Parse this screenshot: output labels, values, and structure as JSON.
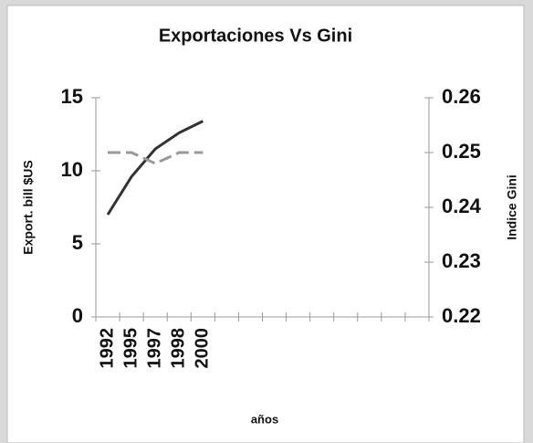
{
  "chart_data": {
    "type": "line",
    "title": "Exportaciones Vs Gini",
    "x_label": "años",
    "y_label": "Export. bill $US",
    "y2_label": "Indice Gini",
    "categories": [
      "1992",
      "1995",
      "1997",
      "1998",
      "2000",
      null,
      null,
      null,
      null,
      null,
      null,
      null,
      null,
      null
    ],
    "series": [
      {
        "name": "Export. bill $US",
        "color": "#333333",
        "values": [
          7.0,
          9.6,
          11.5,
          12.6,
          13.4,
          null,
          null,
          null,
          null,
          null,
          null,
          null,
          null,
          null
        ]
      },
      {
        "name": "Indice Gini",
        "color": "#999999",
        "axis": "y2",
        "values": [
          0.25,
          0.25,
          0.248,
          0.25,
          0.25,
          null,
          null,
          null,
          null,
          null,
          null,
          null,
          null,
          null
        ]
      }
    ],
    "ylim": [
      0,
      15
    ],
    "yticks": [
      0,
      5,
      10,
      15
    ],
    "y2lim": [
      0.22,
      0.26
    ],
    "y2ticks": [
      0.22,
      0.23,
      0.24,
      0.25,
      0.26
    ]
  }
}
